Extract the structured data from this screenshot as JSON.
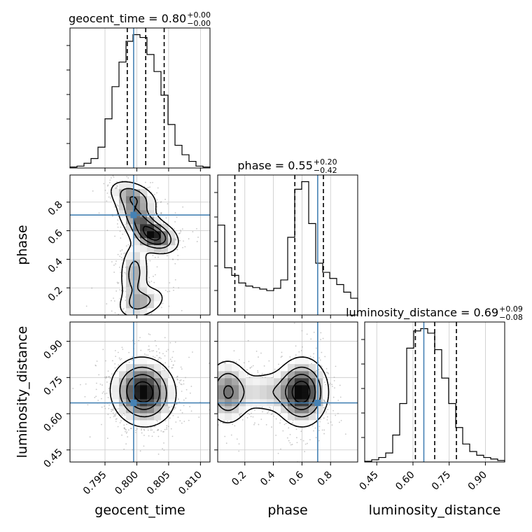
{
  "chart_data": {
    "type": "corner",
    "colors": {
      "truth": "#4682b4",
      "hist": "#000000",
      "grid": "#c8c8c8",
      "scatter": "#9a9a9a"
    },
    "parameters": [
      {
        "key": "geocent_time",
        "label": "geocent_time",
        "truth": 0.7995,
        "range": [
          0.7895,
          0.8115
        ],
        "ticks": [
          0.795,
          0.8,
          0.805,
          0.81
        ],
        "tick_labels": [
          "0.795",
          "0.800",
          "0.805",
          "0.810"
        ],
        "quantiles": [
          0.7985,
          0.8014,
          0.8043
        ],
        "title_main": "geocent_time = 0.80",
        "title_sup": "+0.00",
        "title_sub": "−0.00",
        "hist": [
          1,
          2,
          5,
          10,
          22,
          52,
          86,
          112,
          134,
          141,
          138,
          120,
          102,
          77,
          46,
          24,
          14,
          7,
          2,
          1
        ]
      },
      {
        "key": "phase",
        "label": "phase",
        "truth": 0.71,
        "range": [
          0.01,
          0.99
        ],
        "ticks": [
          0.2,
          0.4,
          0.6,
          0.8
        ],
        "tick_labels": [
          "0.2",
          "0.4",
          "0.6",
          "0.8"
        ],
        "quantiles": [
          0.13,
          0.55,
          0.75
        ],
        "title_main": "phase = 0.55",
        "title_sup": "+0.20",
        "title_sub": "−0.42",
        "hist": [
          118,
          62,
          52,
          42,
          38,
          36,
          34,
          32,
          35,
          46,
          102,
          165,
          175,
          120,
          68,
          56,
          48,
          40,
          30,
          22
        ]
      },
      {
        "key": "luminosity_distance",
        "label": "luminosity_distance",
        "truth": 0.645,
        "range": [
          0.4,
          0.98
        ],
        "ticks": [
          0.45,
          0.6,
          0.75,
          0.9
        ],
        "tick_labels": [
          "0.45",
          "0.60",
          "0.75",
          "0.90"
        ],
        "quantiles": [
          0.61,
          0.69,
          0.78
        ],
        "title_main": "luminosity_distance = 0.69",
        "title_sup": "+0.09",
        "title_sub": "−0.08",
        "hist": [
          1,
          3,
          6,
          12,
          36,
          78,
          152,
          175,
          178,
          172,
          150,
          112,
          78,
          46,
          24,
          14,
          9,
          6,
          4,
          2
        ]
      }
    ],
    "pairs": [
      {
        "x": "geocent_time",
        "y": "phase"
      },
      {
        "x": "geocent_time",
        "y": "luminosity_distance"
      },
      {
        "x": "phase",
        "y": "luminosity_distance"
      }
    ]
  }
}
